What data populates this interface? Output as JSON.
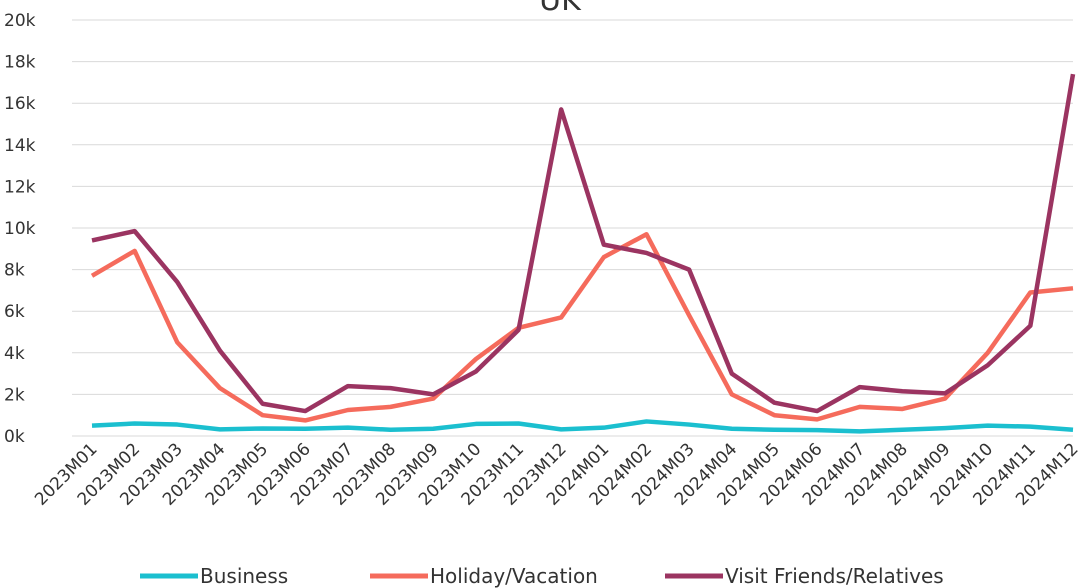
{
  "chart_data": {
    "type": "line",
    "title": "UK",
    "categories": [
      "2023M01",
      "2023M02",
      "2023M03",
      "2023M04",
      "2023M05",
      "2023M06",
      "2023M07",
      "2023M08",
      "2023M09",
      "2023M10",
      "2023M11",
      "2023M12",
      "2024M01",
      "2024M02",
      "2024M03",
      "2024M04",
      "2024M05",
      "2024M06",
      "2024M07",
      "2024M08",
      "2024M09",
      "2024M10",
      "2024M11",
      "2024M12"
    ],
    "series": [
      {
        "name": "Business",
        "color": "#1bbfcf",
        "values": [
          500,
          600,
          550,
          320,
          360,
          350,
          400,
          300,
          350,
          580,
          600,
          320,
          400,
          700,
          550,
          350,
          300,
          280,
          220,
          300,
          380,
          500,
          450,
          300
        ]
      },
      {
        "name": "Holiday/Vacation",
        "color": "#f56b5c",
        "values": [
          7700,
          8900,
          4500,
          2300,
          1000,
          750,
          1250,
          1400,
          1800,
          3700,
          5200,
          5700,
          8600,
          9700,
          5800,
          2000,
          1000,
          800,
          1400,
          1300,
          1800,
          4000,
          6900,
          7100
        ]
      },
      {
        "name": "Visit Friends/Relatives",
        "color": "#9b3461",
        "values": [
          9400,
          9850,
          7400,
          4100,
          1550,
          1200,
          2400,
          2300,
          2000,
          3100,
          5100,
          15700,
          9200,
          8800,
          8000,
          3000,
          1600,
          1200,
          2350,
          2150,
          2050,
          3400,
          5300,
          17400
        ]
      }
    ],
    "ylim": [
      0,
      20000
    ],
    "yticks": [
      {
        "value": 0,
        "label": "0k"
      },
      {
        "value": 2000,
        "label": "2k"
      },
      {
        "value": 4000,
        "label": "4k"
      },
      {
        "value": 6000,
        "label": "6k"
      },
      {
        "value": 8000,
        "label": "8k"
      },
      {
        "value": 10000,
        "label": "10k"
      },
      {
        "value": 12000,
        "label": "12k"
      },
      {
        "value": 14000,
        "label": "14k"
      },
      {
        "value": 16000,
        "label": "16k"
      },
      {
        "value": 18000,
        "label": "18k"
      },
      {
        "value": 20000,
        "label": "20k"
      }
    ],
    "grid": true,
    "legend": "bottom"
  }
}
